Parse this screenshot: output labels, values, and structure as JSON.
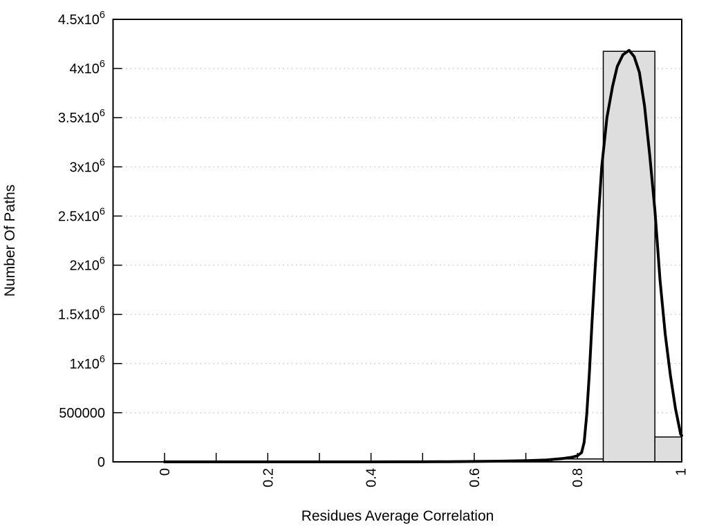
{
  "figure": {
    "background": "#ffffff",
    "border_color": "#000000"
  },
  "chart_data": {
    "type": "histogram+line",
    "title": "",
    "xlabel": "Residues Average Correlation",
    "ylabel": "Number Of Paths",
    "xlim": [
      -0.1,
      1.002
    ],
    "ylim": [
      0,
      4500000
    ],
    "grid": {
      "axis": "y",
      "style": "dotted",
      "color": "#bcbcbc"
    },
    "bar_fill": "#dedede",
    "bar_stroke": "#000000",
    "curve_color": "#000000",
    "x_ticks": {
      "positions": [
        0,
        0.1,
        0.2,
        0.3,
        0.4,
        0.5,
        0.6,
        0.7,
        0.8,
        0.9,
        1.0
      ],
      "labels": [
        {
          "value": 0,
          "label": "0"
        },
        {
          "value": 0.2,
          "label": "0.2"
        },
        {
          "value": 0.4,
          "label": "0.4"
        },
        {
          "value": 0.6,
          "label": "0.6"
        },
        {
          "value": 0.8,
          "label": "0.8"
        },
        {
          "value": 1.0,
          "label": "1"
        }
      ],
      "rotation_deg": -90
    },
    "y_ticks": [
      {
        "value": 0,
        "base": "0",
        "sup": ""
      },
      {
        "value": 500000,
        "base": "500000",
        "sup": ""
      },
      {
        "value": 1000000,
        "base": "1x10",
        "sup": "6"
      },
      {
        "value": 1500000,
        "base": "1.5x10",
        "sup": "6"
      },
      {
        "value": 2000000,
        "base": "2x10",
        "sup": "6"
      },
      {
        "value": 2500000,
        "base": "2.5x10",
        "sup": "6"
      },
      {
        "value": 3000000,
        "base": "3x10",
        "sup": "6"
      },
      {
        "value": 3500000,
        "base": "3.5x10",
        "sup": "6"
      },
      {
        "value": 4000000,
        "base": "4x10",
        "sup": "6"
      },
      {
        "value": 4500000,
        "base": "4.5x10",
        "sup": "6"
      }
    ],
    "bars": [
      {
        "x0": 0.75,
        "x1": 0.85,
        "count": 30000
      },
      {
        "x0": 0.85,
        "x1": 0.95,
        "count": 4175000
      },
      {
        "x0": 0.95,
        "x1": 1.0,
        "count": 253000
      }
    ],
    "curve_points": [
      [
        0,
        0
      ],
      [
        0.05,
        0
      ],
      [
        0.1,
        0
      ],
      [
        0.15,
        0
      ],
      [
        0.2,
        0
      ],
      [
        0.25,
        0
      ],
      [
        0.3,
        0
      ],
      [
        0.35,
        0
      ],
      [
        0.4,
        0
      ],
      [
        0.45,
        500
      ],
      [
        0.5,
        1000
      ],
      [
        0.55,
        2000
      ],
      [
        0.6,
        4000
      ],
      [
        0.65,
        7000
      ],
      [
        0.7,
        12000
      ],
      [
        0.74,
        20000
      ],
      [
        0.77,
        33000
      ],
      [
        0.79,
        48000
      ],
      [
        0.8,
        62000
      ],
      [
        0.808,
        95000
      ],
      [
        0.813,
        200000
      ],
      [
        0.818,
        480000
      ],
      [
        0.823,
        900000
      ],
      [
        0.828,
        1400000
      ],
      [
        0.834,
        1950000
      ],
      [
        0.84,
        2450000
      ],
      [
        0.847,
        3000000
      ],
      [
        0.857,
        3500000
      ],
      [
        0.868,
        3820000
      ],
      [
        0.877,
        4020000
      ],
      [
        0.888,
        4140000
      ],
      [
        0.9,
        4185000
      ],
      [
        0.91,
        4120000
      ],
      [
        0.92,
        3960000
      ],
      [
        0.93,
        3620000
      ],
      [
        0.94,
        3120000
      ],
      [
        0.95,
        2560000
      ],
      [
        0.96,
        1850000
      ],
      [
        0.97,
        1300000
      ],
      [
        0.98,
        880000
      ],
      [
        0.99,
        540000
      ],
      [
        1.0,
        280000
      ],
      [
        1.002,
        268000
      ]
    ]
  }
}
